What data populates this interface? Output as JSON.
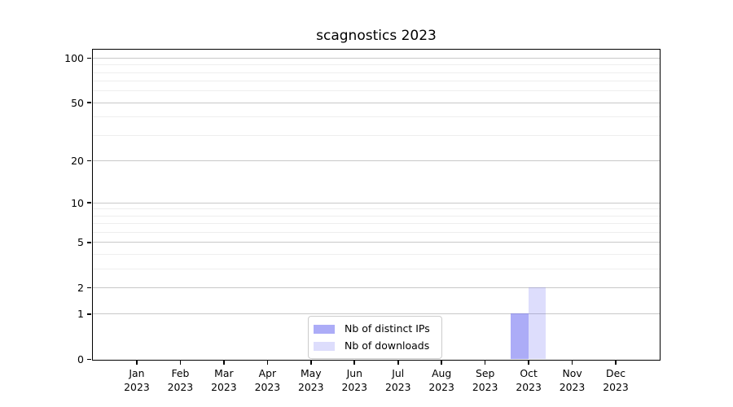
{
  "figure": {
    "title": "scagnostics 2023"
  },
  "chart_data": {
    "type": "bar",
    "title": "scagnostics 2023",
    "categories": [
      "Jan",
      "Feb",
      "Mar",
      "Apr",
      "May",
      "Jun",
      "Jul",
      "Aug",
      "Sep",
      "Oct",
      "Nov",
      "Dec"
    ],
    "category_year": "2023",
    "series": [
      {
        "name": "Nb of distinct IPs",
        "color": "#6363F088",
        "values": [
          0,
          0,
          0,
          0,
          0,
          0,
          0,
          0,
          0,
          1,
          0,
          0
        ]
      },
      {
        "name": "Nb of downloads",
        "color": "#6363F038",
        "values": [
          0,
          0,
          0,
          0,
          0,
          0,
          0,
          0,
          0,
          2,
          0,
          0
        ]
      }
    ],
    "y_axis": {
      "scale": "log1p",
      "ticks": [
        0,
        1,
        2,
        5,
        10,
        20,
        50,
        100
      ],
      "tick_labels": [
        "0",
        "1",
        "2",
        "5",
        "10",
        "20",
        "50",
        "100"
      ],
      "minor_gridlines": [
        3,
        4,
        6,
        7,
        8,
        9,
        30,
        40,
        60,
        70,
        80,
        90
      ],
      "ylim": [
        0,
        113.3
      ]
    },
    "x_axis": {
      "tick_label_line2": "2023"
    },
    "legend": {
      "position": "lower center",
      "entries": [
        "Nb of distinct IPs",
        "Nb of downloads"
      ]
    },
    "grid": {
      "horizontal": true,
      "vertical": false
    }
  },
  "colors": {
    "background": "#ffffff",
    "spine": "#000000",
    "major_gridline": "#c8c8c8",
    "minor_gridline": "#eeeeee",
    "text": "#000000",
    "legend_border": "#cccccc",
    "bar_distinct_ips_effective": "#acacf7",
    "bar_downloads_effective": "#dedef9"
  }
}
